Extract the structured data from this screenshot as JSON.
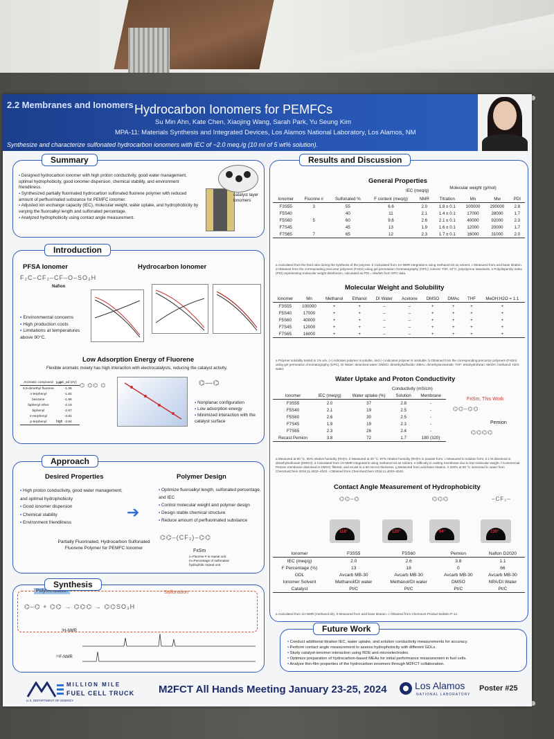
{
  "header": {
    "section": "2.2 Membranes and Ionomers",
    "title": "Hydrocarbon Ionomers for PEMFCs",
    "authors": "Su Min Ahn, Kate Chen, Xiaojing Wang, Sarah Park, Yu Seung Kim",
    "affiliation": "MPA-11: Materials Synthesis and Integrated Devices, Los Alamos National Laboratory, Los Alamos, NM",
    "subtitle": "Synthesize and characterize sulfonated hydrocarbon ionomers with IEC of ~2.0 meq./g (10 ml of 5 wt% solution)."
  },
  "summary": {
    "title": "Summary",
    "bullets": [
      "Designed hydrocarbon ionomer with high proton conductivity, good water management, optimal hydrophobicity, good ionomer dispersion, chemical stability, and environment friendliness.",
      "Synthesized partially fluorinated hydrocarbon sulfonated fluorene polymer with reduced amount of perfluorinated substance for PEMFC ionomer.",
      "Adjusted ion exchange capacity (IEC), molecular weight, water uptake, and hydrophobicity by varying the fluoroalkyl length and sulfonated percentage.",
      "Analyzed hydrophobicity using contact angle measurement."
    ],
    "figure_label": "catalyst layer ionomers"
  },
  "intro": {
    "title": "Introduction",
    "pfsa_title": "PFSA Ionomer",
    "nafion": "Nafion",
    "hc_title": "Hydrocarbon Ionomer",
    "pfsa_bullets": [
      "Environmental concerns",
      "High production costs",
      "Limitations at temperatures above 90°C."
    ],
    "lae_title": "Low Adsorption Energy of Fluorene",
    "lae_desc": "Flexible aromatic moiety has high interaction with electrocatalysts, reducing the catalyst activity.",
    "lae_bullets": [
      "Nonplanar configuration",
      "Low adsorption energy",
      "Minimized interaction with the catalyst surface"
    ],
    "ads_headers": [
      "Aromatic compound",
      "ΔE_ad (eV)"
    ],
    "ads_rows": [
      [
        "9,9-dimethyl fluorene",
        "-1.36"
      ],
      [
        "o-terphenyl",
        "-1.82"
      ],
      [
        "benzene",
        "-1.96"
      ],
      [
        "biphenyl ether",
        "-2.19"
      ],
      [
        "biphenyl",
        "-2.87"
      ],
      [
        "m-terphenyl",
        "-3.81"
      ],
      [
        "p-terphenyl",
        "-3.94"
      ]
    ],
    "low": "low",
    "high": "high"
  },
  "approach": {
    "title": "Approach",
    "desired_title": "Desired Properties",
    "desired": [
      "High proton conductivity, good water management, and optimal hydrophobicity",
      "Good ionomer dispersion",
      "Chemical stability",
      "Environment friendliness"
    ],
    "design_title": "Polymer Design",
    "design": [
      "Optimize fluoroalkyl length, sulfonated percentage, and IEC",
      "Control molecular weight and polymer design",
      "Design stable chemical structure",
      "Reduce amount of perfluorinated substance"
    ],
    "caption": "Partially Fluorinated, Hydrocarbon Sulfonated Fluorene Polymer for PEMFC Ionomer",
    "fxsm": "FxSm",
    "fxsm_note": "x=Fluorine # in repeat unit m=Percentage of sulfonated hydrophilic repeat unit"
  },
  "synthesis": {
    "title": "Synthesis",
    "polymerization": "Polymerization",
    "sulfonation": "Sulfonation",
    "hnmr": "¹H-NMR",
    "fnmr": "¹⁹F-NMR"
  },
  "results": {
    "title": "Results and Discussion",
    "gp_title": "General Properties",
    "gp_headers": [
      "Ionomer",
      "Fluorine #",
      "Sulfonated %",
      "F content (meq/g)",
      "NMR",
      "Titration",
      "Mn",
      "Mw",
      "PDI"
    ],
    "gp_group_iec": "IEC (meq/g)",
    "gp_group_mw": "Molecular weight (g/mol)",
    "gp_rows": [
      [
        "F3S55",
        "3",
        "55",
        "6.6",
        "2.0",
        "1.8 ± 0.1",
        "100000",
        "290000",
        "2.8"
      ],
      [
        "F5S40",
        "",
        "40",
        "11",
        "2.1",
        "1.4 ± 0.1",
        "17000",
        "28000",
        "1.7"
      ],
      [
        "F5S60",
        "5",
        "60",
        "9.6",
        "2.6",
        "2.1 ± 0.1",
        "40000",
        "92000",
        "2.3"
      ],
      [
        "F7S45",
        "",
        "45",
        "13",
        "1.9",
        "1.6 ± 0.1",
        "12000",
        "20000",
        "1.7"
      ],
      [
        "F7S65",
        "7",
        "65",
        "12",
        "2.3",
        "1.7 ± 0.1",
        "16000",
        "31000",
        "2.0"
      ]
    ],
    "gp_note": "a Calculated from the feed ratio during the synthesis of the polymer. b Calculated from 1H-NMR integrations using methanol-d4 as solvent. c Measured from acid-base titration. d Obtained from the corresponding precursor polymers (FxSm) using gel permeation chromatography (GPC); solvent: THF, 40°C, polystyrene standards. e Polydispersity index (PDI) representing molecular weight distribution, calculated as PDI = Mw/Mn from GPC data.",
    "mw_title": "Molecular Weight and Solubility",
    "mw_headers": [
      "Ionomer",
      "Mn",
      "Methanol",
      "Ethanol",
      "DI Water",
      "Acetone",
      "DMSO",
      "DMAc",
      "THF",
      "MeOH:H2O = 1:1"
    ],
    "mw_rows": [
      [
        "F3S55",
        "100000",
        "+",
        "+",
        "–",
        "–",
        "+",
        "+",
        "+",
        "+"
      ],
      [
        "F5S40",
        "17000",
        "+",
        "+",
        "–",
        "–",
        "+",
        "+",
        "+",
        "+"
      ],
      [
        "F5S60",
        "40000",
        "+",
        "+",
        "–",
        "–",
        "+",
        "+",
        "+",
        "+"
      ],
      [
        "F7S45",
        "12000",
        "+",
        "+",
        "–",
        "–",
        "+",
        "+",
        "+",
        "+"
      ],
      [
        "F7S65",
        "16000",
        "+",
        "+",
        "–",
        "–",
        "+",
        "+",
        "+",
        "+"
      ]
    ],
    "mw_note": "a Polymer solubility tested in 1% w/v. (+) indicates polymer is soluble, and (–) indicates polymer is insoluble. b Obtained from the corresponding precursor polymers (FxSm) using gel permeation chromatography (GPC). DI Water: deionized water; DMSO: dimethylsulfoxide; DMAc: dimethylacetamide; THF: tetrahydrofuran; MeOH: methanol; H2O: water.",
    "wu_title": "Water Uptake and Proton Conductivity",
    "wu_headers": [
      "Ionomer",
      "IEC (meq/g)",
      "Water uptake (%)",
      "Solution",
      "Membrane"
    ],
    "wu_group": "Conductivity (mS/cm)",
    "wu_rows": [
      [
        "F3S55",
        "2.0",
        "37",
        "2.8",
        "-"
      ],
      [
        "F5S40",
        "2.1",
        "19",
        "2.5",
        "-"
      ],
      [
        "F5S60",
        "2.6",
        "30",
        "2.5",
        "-"
      ],
      [
        "F7S45",
        "1.9",
        "19",
        "2.3",
        "-"
      ],
      [
        "F7S65",
        "2.3",
        "26",
        "2.4",
        "-"
      ],
      [
        "Recast Pemion",
        "3.8",
        "72",
        "1.7",
        "180 (320)"
      ]
    ],
    "wu_note": "a Measured at 80 °C, 95% relative humidity (RH)%. b Measured at 30 °C, 97% relative humidity (RH)% in powder form. c Measured in solution form; 0.1 M dissolved in dimethylsulfoxide (DMSO). d Calculated from 1H-NMR integrations using methanol-d4 as solvent. e Difficulty in casting membrane due to low molecular weight. f Commercial Pemion membrane dissolved in DMSO, filtered, and recast to a 50-micron thickness. g Measured from acid-base titration. h 320% at 80 °C immersed in water from ChemSusChem 2018,11,4033–4043. i Obtained from ChemSusChem 2018,11,4033–4043.",
    "fxsm_work": "FxSm, This Work",
    "pemion": "Pemion",
    "ca_title": "Contact Angle Measurement of Hydrophobicity",
    "ca_angles": [
      "118°",
      "120°",
      "94°",
      "130°"
    ],
    "ca_headers": [
      "Ionomer",
      "F3S55",
      "F5S60",
      "Pemion",
      "Nafion D2020"
    ],
    "ca_rows": [
      [
        "IEC (meq/g)",
        "2.0",
        "2.6",
        "3.8",
        "1.1"
      ],
      [
        "F Percentage (%)",
        "13",
        "18",
        "0",
        "66"
      ],
      [
        "GDL",
        "Avcarb MB-30",
        "Avcarb MB-30",
        "Avcarb MB-30",
        "Avcarb MB-30"
      ],
      [
        "Ionomer Solvent",
        "Methanol/DI water",
        "Methanol/DI water",
        "DMSO",
        "NPA/DI Water"
      ],
      [
        "Catalyst",
        "Pt/C",
        "Pt/C",
        "Pt/C",
        "Pt/C"
      ]
    ],
    "ca_note": "a Calculated from 1H-NMR (methanol-d4). b Measured from acid-base titration. c Obtained from Chemours Product Bulletin P-14."
  },
  "future": {
    "title": "Future Work",
    "bullets": [
      "Conduct additional titration IEC, water uptake, and solution conductivity measurements for accuracy.",
      "Perform contact angle measurement to assess hydrophobicity with different GDLs.",
      "Study catalyst-ionomer interaction using RDE and microelectrodes.",
      "Optimize preparation of hydrocarbon-based MEAs for initial performance measurement in fuel cells.",
      "Analyze thin-film properties of the hydrocarbon ionomers through M2FCT collaboration."
    ]
  },
  "footer": {
    "m2fct_line1": "MILLION MILE",
    "m2fct_line2": "FUEL CELL TRUCK",
    "doe": "U.S. DEPARTMENT OF ENERGY",
    "meeting": "M2FCT All Hands Meeting January 23-25, 2024",
    "lanl": "Los Alamos",
    "lanl_sub": "NATIONAL LABORATORY",
    "poster": "Poster #25"
  },
  "colors": {
    "header_blue": "#2755b0",
    "box_border": "#2e5bb8",
    "angle_red": "#e22233"
  }
}
